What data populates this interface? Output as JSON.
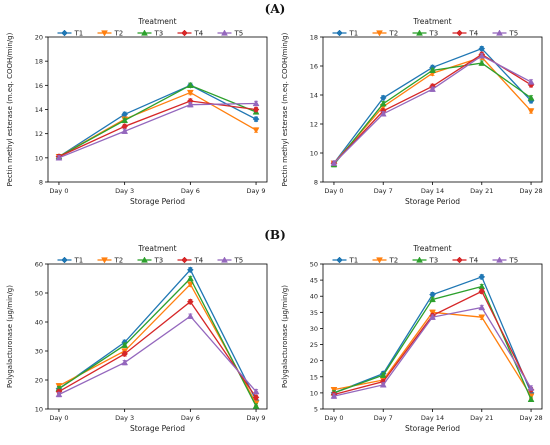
{
  "section_labels": [
    "(A)",
    "(B)"
  ],
  "legend_title": "Treatment",
  "series_colors": {
    "T1": "#1f77b4",
    "T2": "#ff7f0e",
    "T3": "#2ca02c",
    "T4": "#d62728",
    "T5": "#9467bd"
  },
  "chart_data": [
    {
      "type": "line",
      "legend_title": "Treatment",
      "legend_position": "top",
      "categories": [
        "Day 0",
        "Day 3",
        "Day 6",
        "Day 9"
      ],
      "xlabel": "Storage Period",
      "ylabel": "Pectin methyl esterase (m.eq. COOH/min/g)",
      "ylim": [
        8,
        20
      ],
      "yticks": [
        8,
        10,
        12,
        14,
        16,
        18,
        20
      ],
      "series": [
        {
          "name": "T1",
          "values": [
            10.1,
            13.6,
            16.0,
            13.2
          ]
        },
        {
          "name": "T2",
          "values": [
            10.1,
            13.2,
            15.4,
            12.3
          ]
        },
        {
          "name": "T3",
          "values": [
            10.1,
            13.1,
            16.0,
            13.8
          ]
        },
        {
          "name": "T4",
          "values": [
            10.1,
            12.6,
            14.7,
            14.0
          ]
        },
        {
          "name": "T5",
          "values": [
            10.0,
            12.2,
            14.4,
            14.5
          ]
        }
      ]
    },
    {
      "type": "line",
      "legend_title": "Treatment",
      "legend_position": "top",
      "categories": [
        "Day 0",
        "Day 7",
        "Day 14",
        "Day 21",
        "Day 28"
      ],
      "xlabel": "Storage Period",
      "ylabel": "Pectin methyl esterase (m.eq. COOH/min/g)",
      "ylim": [
        8,
        18
      ],
      "yticks": [
        8,
        10,
        12,
        14,
        16,
        18
      ],
      "series": [
        {
          "name": "T1",
          "values": [
            9.3,
            13.8,
            15.9,
            17.2,
            13.6
          ]
        },
        {
          "name": "T2",
          "values": [
            9.3,
            13.2,
            15.5,
            16.6,
            12.9
          ]
        },
        {
          "name": "T3",
          "values": [
            9.2,
            13.4,
            15.7,
            16.2,
            13.8
          ]
        },
        {
          "name": "T4",
          "values": [
            9.3,
            12.9,
            14.6,
            16.8,
            14.7
          ]
        },
        {
          "name": "T5",
          "values": [
            9.3,
            12.7,
            14.4,
            16.7,
            14.9
          ]
        }
      ]
    },
    {
      "type": "line",
      "legend_title": "Treatment",
      "legend_position": "top",
      "categories": [
        "Day 0",
        "Day 3",
        "Day 6",
        "Day 9"
      ],
      "xlabel": "Storage Period",
      "ylabel": "Polygalacturonase (μg/min/g)",
      "ylim": [
        10,
        60
      ],
      "yticks": [
        10,
        20,
        30,
        40,
        50,
        60
      ],
      "series": [
        {
          "name": "T1",
          "values": [
            17,
            33,
            58,
            13
          ]
        },
        {
          "name": "T2",
          "values": [
            18,
            30,
            53,
            12
          ]
        },
        {
          "name": "T3",
          "values": [
            17,
            32,
            55,
            11
          ]
        },
        {
          "name": "T4",
          "values": [
            16,
            29,
            47,
            14
          ]
        },
        {
          "name": "T5",
          "values": [
            15,
            26,
            42,
            16
          ]
        }
      ]
    },
    {
      "type": "line",
      "legend_title": "Treatment",
      "legend_position": "top",
      "categories": [
        "Day 0",
        "Day 7",
        "Day 14",
        "Day 21",
        "Day 28"
      ],
      "xlabel": "Storage Period",
      "ylabel": "Polygalacturonase (μg/min/g)",
      "ylim": [
        5,
        50
      ],
      "yticks": [
        5,
        10,
        15,
        20,
        25,
        30,
        35,
        40,
        45,
        50
      ],
      "series": [
        {
          "name": "T1",
          "values": [
            10,
            16,
            40.5,
            46,
            10
          ]
        },
        {
          "name": "T2",
          "values": [
            11,
            14,
            35,
            33.5,
            9
          ]
        },
        {
          "name": "T3",
          "values": [
            10,
            15.5,
            39,
            43,
            8
          ]
        },
        {
          "name": "T4",
          "values": [
            9.5,
            13.5,
            34,
            41.5,
            11
          ]
        },
        {
          "name": "T5",
          "values": [
            9,
            12.5,
            33.5,
            36.5,
            11.5
          ]
        }
      ]
    }
  ]
}
